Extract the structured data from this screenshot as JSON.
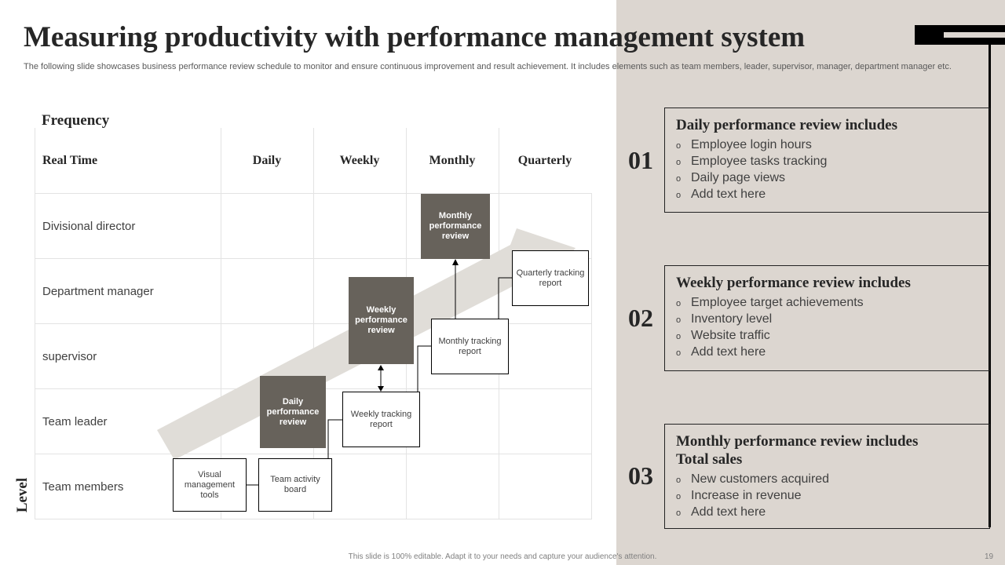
{
  "title": "Measuring productivity with performance management system",
  "subtitle": "The following slide showcases business performance review schedule to monitor and ensure continuous improvement and result achievement. It includes elements such as team members, leader, supervisor, manager, department manager etc.",
  "diagram": {
    "x_axis_label": "Frequency",
    "y_axis_label": "Level",
    "columns": [
      "Real Time",
      "Daily",
      "Weekly",
      "Monthly",
      "Quarterly"
    ],
    "rows": [
      "Divisional director",
      "Department manager",
      "supervisor",
      "Team leader",
      "Team members"
    ],
    "nodes": {
      "visual_tools": "Visual management tools",
      "team_board": "Team activity board",
      "daily_review": "Daily performance review",
      "weekly_report": "Weekly tracking report",
      "weekly_review": "Weekly performance review",
      "monthly_report": "Monthly tracking report",
      "monthly_review": "Monthly performance review",
      "quarterly_report": "Quarterly tracking report"
    },
    "colors": {
      "dark_box": "#67625b",
      "arrow": "#e0ddd8",
      "panel": "#dcd6d0"
    }
  },
  "cards": [
    {
      "num": "01",
      "title": "Daily performance review includes",
      "items": [
        "Employee login hours",
        "Employee tasks tracking",
        "Daily page views",
        "Add text here"
      ]
    },
    {
      "num": "02",
      "title": "Weekly performance review includes",
      "items": [
        "Employee target achievements",
        "Inventory  level",
        "Website traffic",
        "Add text here"
      ]
    },
    {
      "num": "03",
      "title": "Monthly performance review includes Total sales",
      "items": [
        "New customers acquired",
        "Increase in revenue",
        "Add text here"
      ]
    }
  ],
  "bullet": "o",
  "footer": "This slide is 100% editable.  Adapt it to your needs and capture your audience's attention.",
  "page_number": "19"
}
